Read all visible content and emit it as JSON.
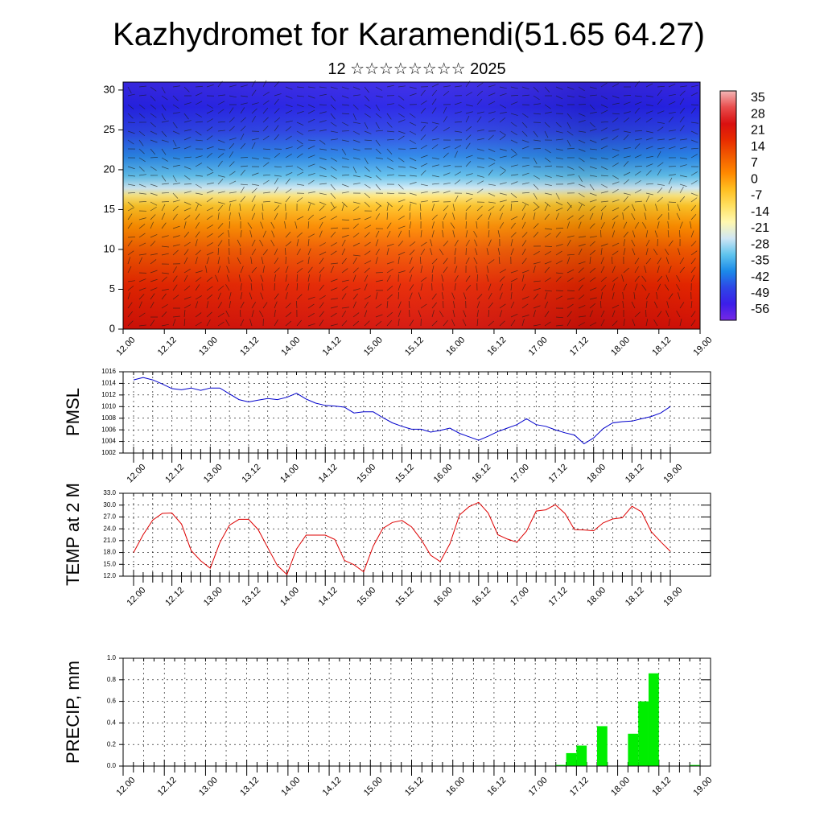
{
  "title": "Kazhydromet for Karamendi(51.65 64.27)",
  "subtitle": "12 ☆☆☆☆☆☆☆☆ 2025",
  "time_labels": [
    "12.00",
    "12.12",
    "13.00",
    "13.12",
    "14.00",
    "14.12",
    "15.00",
    "15.12",
    "16.00",
    "16.12",
    "17.00",
    "17.12",
    "18.00",
    "18.12",
    "19.00"
  ],
  "chart_data": [
    {
      "type": "heatmap",
      "name": "cross-section",
      "ylim": [
        0,
        31
      ],
      "yticks": [
        0,
        5,
        10,
        15,
        20,
        25,
        30
      ],
      "colorbar": {
        "labels": [
          "35",
          "28",
          "21",
          "14",
          "7",
          "0",
          "-7",
          "-14",
          "-21",
          "-28",
          "-35",
          "-42",
          "-49",
          "-56"
        ],
        "colors": [
          "#f4b7b7",
          "#e84c4c",
          "#d91010",
          "#e82c00",
          "#f25c00",
          "#ff8800",
          "#ffbe20",
          "#ffe060",
          "#fff8b0",
          "#cfe6f4",
          "#5fc4ee",
          "#1b8ae8",
          "#2d46e6",
          "#3c1ee8",
          "#7628e6"
        ]
      }
    },
    {
      "type": "line",
      "ylabel": "PMSL",
      "ylim": [
        1002,
        1016
      ],
      "yticks": [
        "1002",
        "1004",
        "1006",
        "1008",
        "1010",
        "1012",
        "1014",
        "1016"
      ],
      "color": "#0000cc",
      "x": [
        0,
        3,
        6,
        9,
        12,
        15,
        18,
        21,
        24,
        27,
        30,
        33,
        36,
        39,
        42,
        45,
        48,
        51,
        54,
        57,
        60,
        63,
        66,
        69,
        72,
        75,
        78,
        81,
        84,
        87,
        90,
        93,
        96,
        99,
        102,
        105,
        108,
        111,
        114,
        117,
        120,
        123,
        126,
        129,
        132,
        135,
        138,
        141,
        144,
        147,
        150,
        153,
        156,
        159,
        162,
        165,
        168
      ],
      "values": [
        1014.6,
        1015.0,
        1014.6,
        1013.9,
        1013.1,
        1012.9,
        1013.2,
        1012.8,
        1013.2,
        1013.2,
        1012.2,
        1011.2,
        1010.8,
        1011.1,
        1011.4,
        1011.2,
        1011.6,
        1012.3,
        1011.3,
        1010.6,
        1010.2,
        1010.1,
        1009.9,
        1008.9,
        1009.1,
        1009.1,
        1008.1,
        1007.2,
        1006.6,
        1006.1,
        1006.1,
        1005.6,
        1005.9,
        1006.3,
        1005.4,
        1004.8,
        1004.2,
        1004.9,
        1005.7,
        1006.3,
        1006.9,
        1007.9,
        1006.9,
        1006.6,
        1006.0,
        1005.5,
        1005.1,
        1003.6,
        1004.6,
        1006.2,
        1007.2,
        1007.4,
        1007.5,
        1007.9,
        1008.3,
        1008.9,
        1010.0
      ]
    },
    {
      "type": "line",
      "ylabel": "TEMP at 2 M",
      "ylim": [
        12,
        33
      ],
      "yticks": [
        "12.0",
        "15.0",
        "18.0",
        "21.0",
        "24.0",
        "27.0",
        "30.0",
        "33.0"
      ],
      "color": "#dd0000",
      "x": [
        0,
        3,
        6,
        9,
        12,
        15,
        18,
        21,
        24,
        27,
        30,
        33,
        36,
        39,
        42,
        45,
        48,
        51,
        54,
        57,
        60,
        63,
        66,
        69,
        72,
        75,
        78,
        81,
        84,
        87,
        90,
        93,
        96,
        99,
        102,
        105,
        108,
        111,
        114,
        117,
        120,
        123,
        126,
        129,
        132,
        135,
        138,
        141,
        144,
        147,
        150,
        153,
        156,
        159,
        162,
        165,
        168
      ],
      "values": [
        18.0,
        22.5,
        26.2,
        27.9,
        28.0,
        25.2,
        18.5,
        15.9,
        14.0,
        20.5,
        24.9,
        26.4,
        26.4,
        23.8,
        19.2,
        14.7,
        12.4,
        18.9,
        22.4,
        22.4,
        22.4,
        21.3,
        16.0,
        14.9,
        13.1,
        19.6,
        24.1,
        25.6,
        26.1,
        24.5,
        21.3,
        17.3,
        15.7,
        20.2,
        27.5,
        29.6,
        30.7,
        28.0,
        22.5,
        21.4,
        20.6,
        23.4,
        28.5,
        28.8,
        30.1,
        27.9,
        23.8,
        23.7,
        23.5,
        25.5,
        26.5,
        26.8,
        29.7,
        28.3,
        23.3,
        20.7,
        18.3
      ]
    },
    {
      "type": "bar",
      "ylabel": "PRECIP, mm",
      "ylim": [
        0,
        1
      ],
      "yticks": [
        "0.0",
        "0.2",
        "0.4",
        "0.6",
        "0.8",
        "1.0"
      ],
      "color": "#00ee00",
      "x": [
        126,
        129,
        132,
        138,
        147,
        150,
        153,
        165
      ],
      "values": [
        0.01,
        0.12,
        0.19,
        0.37,
        0.3,
        0.6,
        0.86,
        0.01
      ]
    }
  ]
}
